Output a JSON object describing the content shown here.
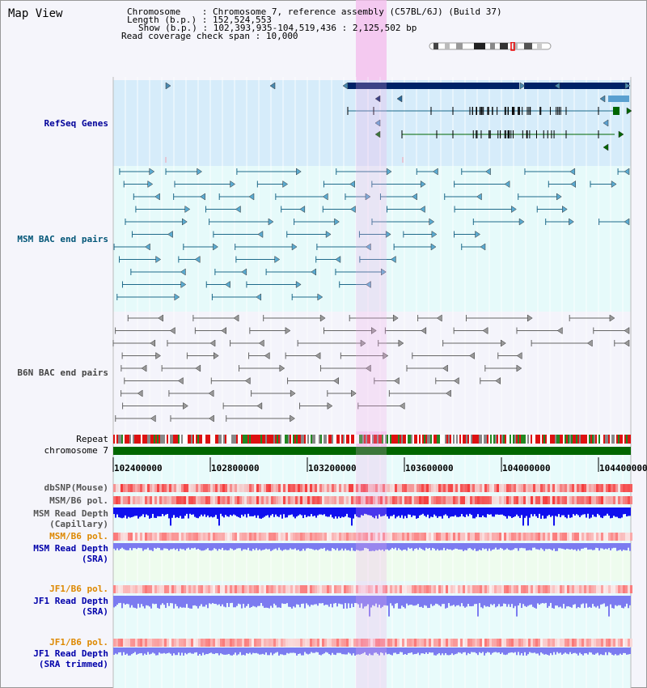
{
  "view_title": "Map View",
  "info": {
    "chromosome_label": "Chromosome",
    "chromosome_value": ": Chromosome 7, reference assembly (C57BL/6J) (Build 37)",
    "length_label": "Length (b.p.)",
    "length_value": ": 152,524,553",
    "show_label": "Show (b.p.)",
    "show_value": ": 102,393,935-104,519,436 : 2,125,502 bp",
    "coverage_label": "Read coverage check span",
    "coverage_value": ": 10,000"
  },
  "tracks": {
    "refseq": "RefSeq Genes",
    "msm_bac": "MSM BAC end pairs",
    "b6n_bac": "B6N BAC end pairs",
    "repeat": "Repeat",
    "chromosome": "chromosome 7",
    "dbsnp": "dbSNP(Mouse)",
    "msm_b6_pol": "MSM/B6 pol.",
    "msm_read_depth_cap_1": "MSM Read Depth",
    "msm_read_depth_cap_2": "(Capillary)",
    "msm_b6_pol_2": "MSM/B6 pol.",
    "msm_read_depth_sra_1": "MSM Read Depth",
    "msm_read_depth_sra_2": "(SRA)",
    "jf1_b6_pol": "JF1/B6 pol.",
    "jf1_read_depth_sra_1": "JF1 Read Depth",
    "jf1_read_depth_sra_2": "(SRA)",
    "jf1_b6_pol_2": "JF1/B6 pol.",
    "jf1_read_depth_trim_1": "JF1 Read Depth",
    "jf1_read_depth_trim_2": "(SRA trimmed)"
  },
  "axis_ticks": [
    "102400000",
    "102800000",
    "103200000",
    "103600000",
    "104000000",
    "104400000"
  ],
  "colors": {
    "refseq_label": "#000099",
    "msm_label": "#005577",
    "b6n_label": "#444444",
    "orange_label": "#dd8800",
    "blue_label": "#0000aa",
    "gene_dark": "#002266",
    "msm_pair": "#1f6a8a",
    "b6n_pair": "#666666",
    "chrom_bar": "#006600",
    "depth_dark": "#1010ee",
    "depth_light": "#7b7bf0"
  }
}
